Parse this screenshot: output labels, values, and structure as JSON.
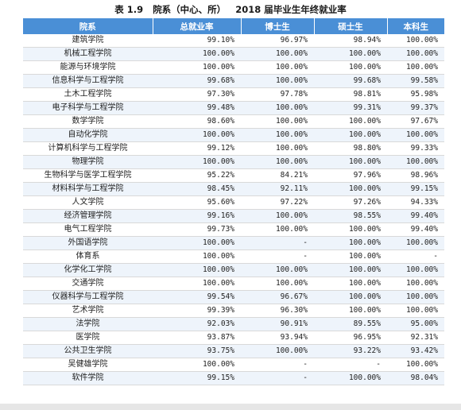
{
  "caption": {
    "table_no": "表 1.9",
    "title_a": "院系（中心、所）",
    "title_b": "2018 届毕业生年终就业率"
  },
  "table": {
    "headers": [
      "院系",
      "总就业率",
      "博士生",
      "硕士生",
      "本科生"
    ],
    "rows": [
      [
        "建筑学院",
        "99.10%",
        "96.97%",
        "98.94%",
        "100.00%"
      ],
      [
        "机械工程学院",
        "100.00%",
        "100.00%",
        "100.00%",
        "100.00%"
      ],
      [
        "能源与环境学院",
        "100.00%",
        "100.00%",
        "100.00%",
        "100.00%"
      ],
      [
        "信息科学与工程学院",
        "99.68%",
        "100.00%",
        "99.68%",
        "99.58%"
      ],
      [
        "土木工程学院",
        "97.30%",
        "97.78%",
        "98.81%",
        "95.98%"
      ],
      [
        "电子科学与工程学院",
        "99.48%",
        "100.00%",
        "99.31%",
        "99.37%"
      ],
      [
        "数学学院",
        "98.60%",
        "100.00%",
        "100.00%",
        "97.67%"
      ],
      [
        "自动化学院",
        "100.00%",
        "100.00%",
        "100.00%",
        "100.00%"
      ],
      [
        "计算机科学与工程学院",
        "99.12%",
        "100.00%",
        "98.80%",
        "99.33%"
      ],
      [
        "物理学院",
        "100.00%",
        "100.00%",
        "100.00%",
        "100.00%"
      ],
      [
        "生物科学与医学工程学院",
        "95.22%",
        "84.21%",
        "97.96%",
        "98.96%"
      ],
      [
        "材料科学与工程学院",
        "98.45%",
        "92.11%",
        "100.00%",
        "99.15%"
      ],
      [
        "人文学院",
        "95.60%",
        "97.22%",
        "97.26%",
        "94.33%"
      ],
      [
        "经济管理学院",
        "99.16%",
        "100.00%",
        "98.55%",
        "99.40%"
      ],
      [
        "电气工程学院",
        "99.73%",
        "100.00%",
        "100.00%",
        "99.40%"
      ],
      [
        "外国语学院",
        "100.00%",
        "-",
        "100.00%",
        "100.00%"
      ],
      [
        "体育系",
        "100.00%",
        "-",
        "100.00%",
        "-"
      ],
      [
        "化学化工学院",
        "100.00%",
        "100.00%",
        "100.00%",
        "100.00%"
      ],
      [
        "交通学院",
        "100.00%",
        "100.00%",
        "100.00%",
        "100.00%"
      ],
      [
        "仪器科学与工程学院",
        "99.54%",
        "96.67%",
        "100.00%",
        "100.00%"
      ],
      [
        "艺术学院",
        "99.39%",
        "96.30%",
        "100.00%",
        "100.00%"
      ],
      [
        "法学院",
        "92.03%",
        "90.91%",
        "89.55%",
        "95.00%"
      ],
      [
        "医学院",
        "93.87%",
        "93.94%",
        "96.95%",
        "92.31%"
      ],
      [
        "公共卫生学院",
        "93.75%",
        "100.00%",
        "93.22%",
        "93.42%"
      ],
      [
        "吴健雄学院",
        "100.00%",
        "-",
        "-",
        "100.00%"
      ],
      [
        "软件学院",
        "99.15%",
        "-",
        "100.00%",
        "98.04%"
      ]
    ]
  }
}
